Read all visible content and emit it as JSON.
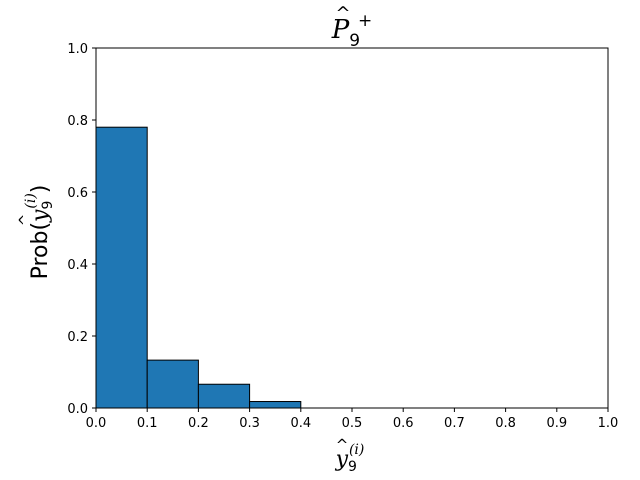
{
  "chart_data": {
    "type": "bar",
    "title": {
      "base": "P",
      "accent": "^",
      "subscript": "9",
      "superscript": "+"
    },
    "xlabel": {
      "base": "y",
      "accent": "^",
      "subscript": "9",
      "superscript": "(i)"
    },
    "ylabel": {
      "prefix": "Prob(",
      "base": "y",
      "accent": "^",
      "subscript": "9",
      "superscript": "(i)",
      "suffix": ")"
    },
    "bins": [
      {
        "x0": 0.0,
        "x1": 0.1,
        "value": 0.78
      },
      {
        "x0": 0.1,
        "x1": 0.2,
        "value": 0.133
      },
      {
        "x0": 0.2,
        "x1": 0.3,
        "value": 0.066
      },
      {
        "x0": 0.3,
        "x1": 0.4,
        "value": 0.018
      },
      {
        "x0": 0.4,
        "x1": 0.5,
        "value": 0.0
      },
      {
        "x0": 0.5,
        "x1": 0.6,
        "value": 0.0
      },
      {
        "x0": 0.6,
        "x1": 0.7,
        "value": 0.0
      },
      {
        "x0": 0.7,
        "x1": 0.8,
        "value": 0.0
      },
      {
        "x0": 0.8,
        "x1": 0.9,
        "value": 0.0
      },
      {
        "x0": 0.9,
        "x1": 1.0,
        "value": 0.0
      }
    ],
    "xlim": [
      0.0,
      1.0
    ],
    "ylim": [
      0.0,
      1.0
    ],
    "xticks": [
      "0.0",
      "0.1",
      "0.2",
      "0.3",
      "0.4",
      "0.5",
      "0.6",
      "0.7",
      "0.8",
      "0.9",
      "1.0"
    ],
    "yticks": [
      "0.0",
      "0.2",
      "0.4",
      "0.6",
      "0.8",
      "1.0"
    ],
    "grid": false,
    "legend": "none",
    "colors": {
      "bar_fill": "#1f77b4",
      "bar_edge": "#000000"
    }
  }
}
